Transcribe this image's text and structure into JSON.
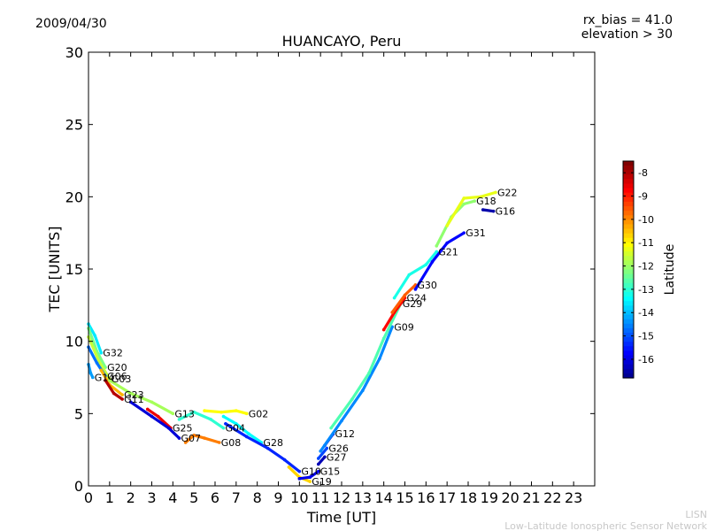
{
  "header": {
    "date": "2009/04/30",
    "rx_bias": "rx_bias = 41.0",
    "elevation": "elevation > 30"
  },
  "footer": {
    "line1": "LISN",
    "line2": "Low-Latitude Ionospheric Sensor Network"
  },
  "chart_data": {
    "type": "scatter",
    "title": "HUANCAYO, Peru",
    "xlabel": "Time [UT]",
    "ylabel": "TEC [UNITS]",
    "xlim": [
      0,
      24
    ],
    "ylim": [
      0,
      30
    ],
    "xticks": [
      0,
      1,
      2,
      3,
      4,
      5,
      6,
      7,
      8,
      9,
      10,
      11,
      12,
      13,
      14,
      15,
      16,
      17,
      18,
      19,
      20,
      21,
      22,
      23
    ],
    "yticks": [
      0,
      5,
      10,
      15,
      20,
      25,
      30
    ],
    "grid": false,
    "colorbar": {
      "label": "Latitude",
      "range": [
        -16.8,
        -7.5
      ],
      "ticks": [
        -8,
        -9,
        -10,
        -11,
        -12,
        -13,
        -14,
        -15,
        -16
      ]
    },
    "series": [
      {
        "name": "G32",
        "lat": -13.5,
        "points": [
          [
            0,
            11.2
          ],
          [
            0.3,
            10.4
          ],
          [
            0.6,
            9.2
          ]
        ]
      },
      {
        "name": "G20",
        "lat": -12.2,
        "points": [
          [
            0,
            10.9
          ],
          [
            0.4,
            9.3
          ],
          [
            0.8,
            8.2
          ]
        ]
      },
      {
        "name": "G03",
        "lat": -11.5,
        "points": [
          [
            0,
            10.3
          ],
          [
            0.5,
            8.6
          ],
          [
            1.0,
            7.4
          ]
        ]
      },
      {
        "name": "G06",
        "lat": -14.6,
        "points": [
          [
            0,
            9.6
          ],
          [
            0.4,
            8.5
          ],
          [
            0.8,
            7.6
          ]
        ]
      },
      {
        "name": "G14",
        "lat": -14.2,
        "points": [
          [
            0,
            8.4
          ],
          [
            0.1,
            7.8
          ],
          [
            0.2,
            7.5
          ]
        ]
      },
      {
        "name": "G23",
        "lat": -10.3,
        "points": [
          [
            0.6,
            8.0
          ],
          [
            1.0,
            7.0
          ],
          [
            1.6,
            6.3
          ]
        ]
      },
      {
        "name": "G11",
        "lat": -8.0,
        "points": [
          [
            0.8,
            7.3
          ],
          [
            1.2,
            6.4
          ],
          [
            1.6,
            6.0
          ]
        ]
      },
      {
        "name": "G13",
        "lat": -11.8,
        "points": [
          [
            1.0,
            7.3
          ],
          [
            2.0,
            6.4
          ],
          [
            3.0,
            5.8
          ],
          [
            4.0,
            5.0
          ]
        ]
      },
      {
        "name": "G25",
        "lat": -8.5,
        "points": [
          [
            2.8,
            5.3
          ],
          [
            3.3,
            4.8
          ],
          [
            3.9,
            4.0
          ]
        ]
      },
      {
        "name": "G07",
        "lat": -16.0,
        "points": [
          [
            2.0,
            5.8
          ],
          [
            3.0,
            4.8
          ],
          [
            3.8,
            4.0
          ],
          [
            4.3,
            3.3
          ]
        ]
      },
      {
        "name": "G04",
        "lat": -12.9,
        "points": [
          [
            4.3,
            4.6
          ],
          [
            5.0,
            5.1
          ],
          [
            5.8,
            4.6
          ],
          [
            6.4,
            4.0
          ]
        ]
      },
      {
        "name": "G08",
        "lat": -9.8,
        "points": [
          [
            4.6,
            3.0
          ],
          [
            5.0,
            3.5
          ],
          [
            5.5,
            3.3
          ],
          [
            6.2,
            3.0
          ]
        ]
      },
      {
        "name": "G02",
        "lat": -11.0,
        "points": [
          [
            5.5,
            5.2
          ],
          [
            6.3,
            5.1
          ],
          [
            7.0,
            5.2
          ],
          [
            7.5,
            5.0
          ]
        ]
      },
      {
        "name": "G28",
        "lat": -13.3,
        "points": [
          [
            6.4,
            4.8
          ],
          [
            7.0,
            4.3
          ],
          [
            7.6,
            3.6
          ],
          [
            8.2,
            3.0
          ]
        ]
      },
      {
        "name": "G10",
        "lat": -15.3,
        "points": [
          [
            6.5,
            4.3
          ],
          [
            7.5,
            3.4
          ],
          [
            8.5,
            2.6
          ],
          [
            9.3,
            1.8
          ],
          [
            10.0,
            1.0
          ]
        ]
      },
      {
        "name": "G19",
        "lat": -10.6,
        "points": [
          [
            9.5,
            1.3
          ],
          [
            10.0,
            0.6
          ],
          [
            10.5,
            0.3
          ]
        ]
      },
      {
        "name": "G15",
        "lat": -15.8,
        "points": [
          [
            10.0,
            0.5
          ],
          [
            10.5,
            0.6
          ],
          [
            10.9,
            1.0
          ]
        ]
      },
      {
        "name": "G27",
        "lat": -16.3,
        "points": [
          [
            10.9,
            1.5
          ],
          [
            11.2,
            2.0
          ]
        ]
      },
      {
        "name": "G26",
        "lat": -15.0,
        "points": [
          [
            10.9,
            1.9
          ],
          [
            11.3,
            2.6
          ]
        ]
      },
      {
        "name": "G12",
        "lat": -16.0,
        "points": [
          [
            11.2,
            2.8
          ],
          [
            11.6,
            3.6
          ]
        ]
      },
      {
        "name": "G09",
        "lat": -14.4,
        "points": [
          [
            11.0,
            2.4
          ],
          [
            12.0,
            4.5
          ],
          [
            13.0,
            6.6
          ],
          [
            13.8,
            8.8
          ],
          [
            14.4,
            11.0
          ]
        ]
      },
      {
        "name": "G29",
        "lat": -12.6,
        "points": [
          [
            11.5,
            4.0
          ],
          [
            12.5,
            6.0
          ],
          [
            13.3,
            7.8
          ],
          [
            14.0,
            10.2
          ],
          [
            14.8,
            12.6
          ]
        ]
      },
      {
        "name": "G24",
        "lat": -8.7,
        "points": [
          [
            14.0,
            10.8
          ],
          [
            14.5,
            12.0
          ],
          [
            15.0,
            13.0
          ]
        ]
      },
      {
        "name": "G30",
        "lat": -9.5,
        "points": [
          [
            14.4,
            12.0
          ],
          [
            15.0,
            13.2
          ],
          [
            15.5,
            13.9
          ]
        ]
      },
      {
        "name": "G21",
        "lat": -13.1,
        "points": [
          [
            14.5,
            13.0
          ],
          [
            15.2,
            14.6
          ],
          [
            16.0,
            15.3
          ],
          [
            16.5,
            16.2
          ]
        ]
      },
      {
        "name": "G31",
        "lat": -15.6,
        "points": [
          [
            15.5,
            13.6
          ],
          [
            16.3,
            15.5
          ],
          [
            17.0,
            16.8
          ],
          [
            17.8,
            17.5
          ]
        ]
      },
      {
        "name": "G18",
        "lat": -12.0,
        "points": [
          [
            16.5,
            16.6
          ],
          [
            17.2,
            18.6
          ],
          [
            17.8,
            19.5
          ],
          [
            18.3,
            19.7
          ]
        ]
      },
      {
        "name": "G22",
        "lat": -11.2,
        "points": [
          [
            17.0,
            18.0
          ],
          [
            17.8,
            19.9
          ],
          [
            18.6,
            20.0
          ],
          [
            19.3,
            20.3
          ]
        ]
      },
      {
        "name": "G16",
        "lat": -16.4,
        "points": [
          [
            18.7,
            19.1
          ],
          [
            19.2,
            19.0
          ]
        ]
      }
    ]
  }
}
